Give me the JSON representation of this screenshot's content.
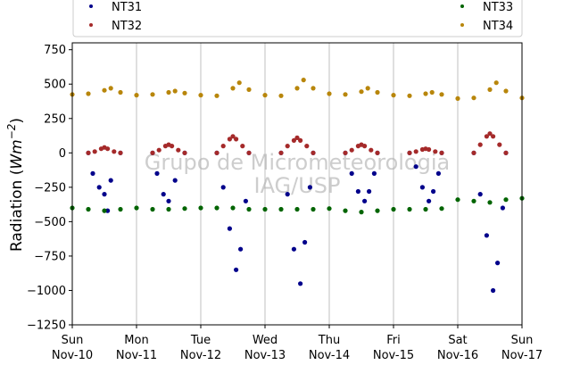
{
  "chart_data": {
    "type": "scatter",
    "title": "",
    "ylabel_prefix": "Radiation (",
    "ylabel_unit_base": "Wm",
    "ylabel_unit_exp": "−2",
    "ylabel_suffix": ")",
    "ylim": [
      -1250,
      800
    ],
    "yticks": [
      750,
      500,
      250,
      0,
      -250,
      -500,
      -750,
      -1000,
      -1250
    ],
    "ytick_labels": [
      "750",
      "500",
      "250",
      "0",
      "−250",
      "−500",
      "−750",
      "−1000",
      "−1250"
    ],
    "xlim": [
      0,
      7
    ],
    "xticks": [
      0,
      1,
      2,
      3,
      4,
      5,
      6,
      7
    ],
    "xtick_day": [
      "Sun",
      "Mon",
      "Tue",
      "Wed",
      "Thu",
      "Fri",
      "Sat",
      "Sun"
    ],
    "xtick_date": [
      "Nov-10",
      "Nov-11",
      "Nov-12",
      "Nov-13",
      "Nov-14",
      "Nov-15",
      "Nov-16",
      "Nov-17"
    ],
    "grid": "vertical",
    "legend_placement": "top",
    "watermark_lines": [
      "Grupo de Micrometeorologia",
      "IAG/USP"
    ],
    "series": [
      {
        "name": "NT31",
        "color": "#00008b",
        "x": [
          0.25,
          0.32,
          0.42,
          0.5,
          0.55,
          0.6,
          0.75,
          1.25,
          1.32,
          1.42,
          1.5,
          1.6,
          1.75,
          2.25,
          2.35,
          2.45,
          2.55,
          2.62,
          2.7,
          2.75,
          3.25,
          3.35,
          3.45,
          3.55,
          3.62,
          3.7,
          3.75,
          4.25,
          4.35,
          4.45,
          4.55,
          4.62,
          4.7,
          4.75,
          5.25,
          5.35,
          5.45,
          5.55,
          5.62,
          5.7,
          5.75,
          6.25,
          6.35,
          6.45,
          6.55,
          6.62,
          6.7,
          6.75
        ],
        "y": [
          0,
          -150,
          -250,
          -300,
          -420,
          -200,
          0,
          0,
          -150,
          -300,
          -350,
          -200,
          0,
          0,
          -250,
          -550,
          -850,
          -700,
          -350,
          0,
          0,
          -300,
          -700,
          -950,
          -650,
          -250,
          0,
          0,
          -150,
          -280,
          -350,
          -280,
          -150,
          0,
          0,
          -100,
          -250,
          -350,
          -280,
          -150,
          0,
          0,
          -300,
          -600,
          -1000,
          -800,
          -400,
          0
        ]
      },
      {
        "name": "NT32",
        "color": "#a52a2a",
        "x": [
          0.25,
          0.35,
          0.45,
          0.5,
          0.55,
          0.65,
          0.75,
          1.25,
          1.35,
          1.45,
          1.5,
          1.55,
          1.65,
          1.75,
          2.25,
          2.35,
          2.45,
          2.5,
          2.55,
          2.65,
          2.75,
          3.25,
          3.35,
          3.45,
          3.5,
          3.55,
          3.65,
          3.75,
          4.25,
          4.35,
          4.45,
          4.5,
          4.55,
          4.65,
          4.75,
          5.25,
          5.35,
          5.45,
          5.5,
          5.55,
          5.65,
          5.75,
          6.25,
          6.35,
          6.45,
          6.5,
          6.55,
          6.65,
          6.75
        ],
        "y": [
          0,
          10,
          30,
          40,
          30,
          10,
          0,
          0,
          20,
          50,
          60,
          50,
          20,
          0,
          0,
          50,
          100,
          120,
          100,
          50,
          0,
          0,
          50,
          90,
          110,
          90,
          50,
          0,
          0,
          20,
          50,
          60,
          50,
          20,
          0,
          0,
          10,
          25,
          30,
          25,
          10,
          0,
          0,
          60,
          120,
          140,
          120,
          60,
          0
        ]
      },
      {
        "name": "NT33",
        "color": "#006400",
        "x": [
          0,
          0.25,
          0.5,
          0.75,
          1,
          1.25,
          1.5,
          1.75,
          2,
          2.25,
          2.5,
          2.75,
          3,
          3.25,
          3.5,
          3.75,
          4,
          4.25,
          4.5,
          4.75,
          5,
          5.25,
          5.5,
          5.75,
          6,
          6.25,
          6.5,
          6.75,
          7
        ],
        "y": [
          -400,
          -410,
          -420,
          -410,
          -400,
          -410,
          -410,
          -405,
          -400,
          -400,
          -400,
          -410,
          -410,
          -410,
          -410,
          -410,
          -405,
          -420,
          -430,
          -420,
          -410,
          -410,
          -410,
          -405,
          -340,
          -350,
          -360,
          -340,
          -330
        ]
      },
      {
        "name": "NT34",
        "color": "#b8860b",
        "x": [
          0,
          0.25,
          0.5,
          0.6,
          0.75,
          1,
          1.25,
          1.5,
          1.6,
          1.75,
          2,
          2.25,
          2.5,
          2.6,
          2.75,
          3,
          3.25,
          3.5,
          3.6,
          3.75,
          4,
          4.25,
          4.5,
          4.6,
          4.75,
          5,
          5.25,
          5.5,
          5.6,
          5.75,
          6,
          6.25,
          6.5,
          6.6,
          6.75,
          7
        ],
        "y": [
          425,
          430,
          455,
          470,
          440,
          420,
          425,
          440,
          450,
          435,
          420,
          415,
          470,
          510,
          460,
          420,
          415,
          470,
          530,
          470,
          430,
          425,
          445,
          470,
          440,
          420,
          415,
          430,
          440,
          425,
          395,
          400,
          460,
          510,
          450,
          400
        ]
      }
    ]
  }
}
